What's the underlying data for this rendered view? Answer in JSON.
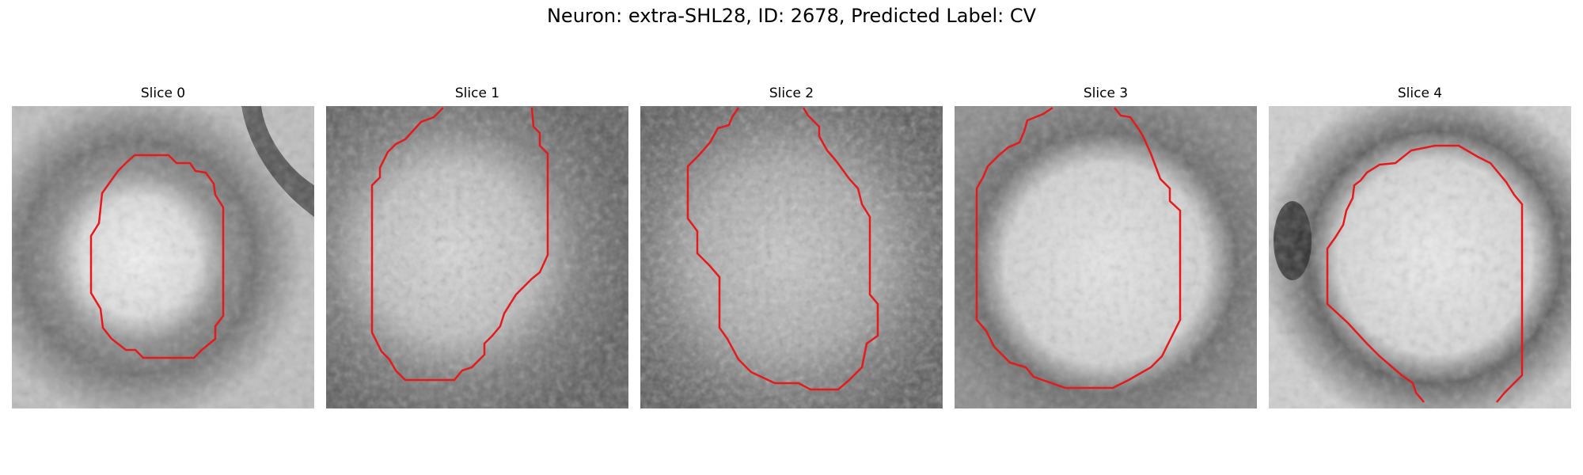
{
  "figure": {
    "title": "Neuron: extra-SHL28, ID: 2678, Predicted Label: CV"
  },
  "slices": [
    {
      "title": "Slice 0",
      "image_description": "grayscale EM patch with a bright round cell body in the center-left surrounded by a dark membrane ring; dark diagonal band at top right",
      "contour_color": "#e41a1c"
    },
    {
      "title": "Slice 1",
      "image_description": "grayscale EM patch with a large bright textured cell body, dark boundary on the right and bottom",
      "contour_color": "#e41a1c"
    },
    {
      "title": "Slice 2",
      "image_description": "grayscale EM patch, noisy texture with a mid-bright cell body and dark surroundings",
      "contour_color": "#e41a1c"
    },
    {
      "title": "Slice 3",
      "image_description": "grayscale EM patch with a large bright round cell body and a dark surrounding ring",
      "contour_color": "#e41a1c"
    },
    {
      "title": "Slice 4",
      "image_description": "grayscale EM patch with a bright round cell body in the center-right, dark membrane ring and dark blob at left",
      "contour_color": "#e41a1c"
    }
  ]
}
